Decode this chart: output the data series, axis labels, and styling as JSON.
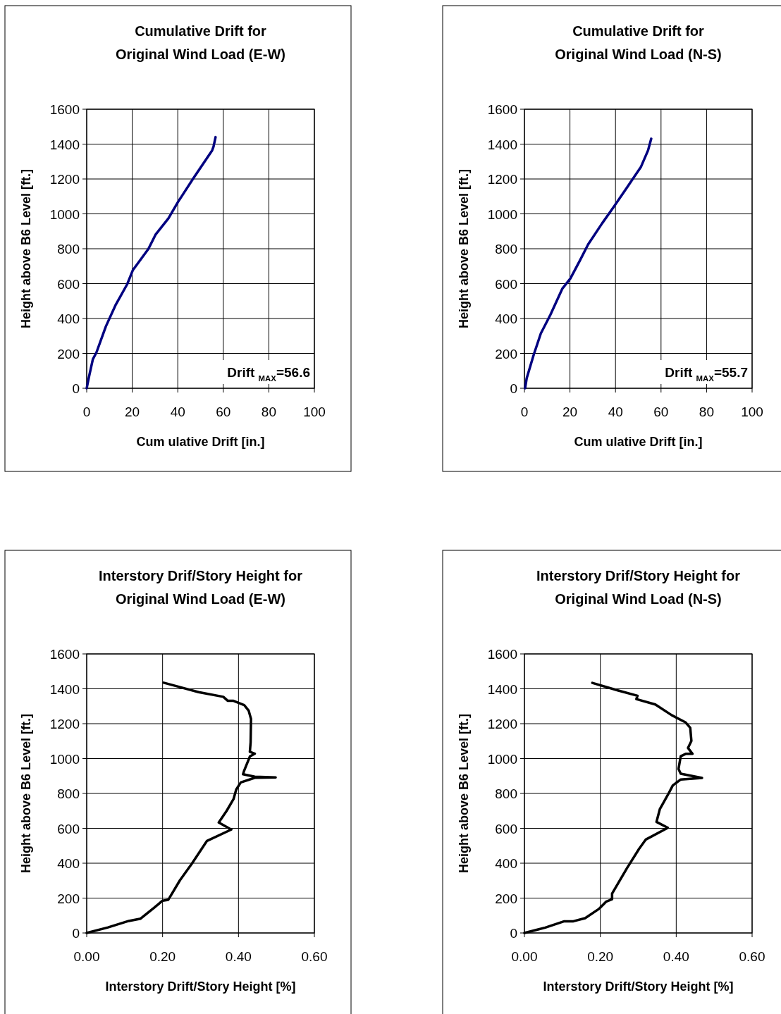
{
  "chart_data": [
    {
      "type": "line",
      "title": "Cumulative Drift for\nOriginal Wind Load (E-W)",
      "xlabel": "Cum ulative Drift [in.]",
      "ylabel": "Height above B6 Level [ft.]",
      "xlim": [
        0,
        100
      ],
      "xticks": [
        0,
        20,
        40,
        60,
        80,
        100
      ],
      "ylim": [
        0,
        1600
      ],
      "yticks": [
        0,
        200,
        400,
        600,
        800,
        1000,
        1200,
        1400,
        1600
      ],
      "grid": true,
      "annotations": [
        "Drift $_{MAX}$=56.6"
      ],
      "series": [
        {
          "color": "#000080",
          "x": [
            0,
            1.1,
            2.7,
            4.3,
            8.4,
            12.6,
            17.8,
            20.3,
            27.1,
            30.2,
            35.9,
            40.1,
            46.8,
            55.1,
            55.7,
            56.6
          ],
          "values": [
            0,
            71,
            166,
            206,
            354,
            475,
            597,
            678,
            799,
            880,
            974,
            1068,
            1203,
            1364,
            1385,
            1440
          ]
        }
      ]
    },
    {
      "type": "line",
      "title": "Cumulative Drift for\nOriginal Wind Load (N-S)",
      "xlabel": "Cum ulative Drift [in.]",
      "ylabel": "Height above B6 Level [ft.]",
      "xlim": [
        0,
        100
      ],
      "xticks": [
        0,
        20,
        40,
        60,
        80,
        100
      ],
      "ylim": [
        0,
        1600
      ],
      "yticks": [
        0,
        200,
        400,
        600,
        800,
        1000,
        1200,
        1400,
        1600
      ],
      "grid": true,
      "annotations": [
        "Drift $_{MAX}$=55.7"
      ],
      "series": [
        {
          "color": "#000080",
          "x": [
            0.3,
            1.0,
            4.1,
            7.2,
            11.4,
            16.6,
            20.2,
            24.3,
            28.0,
            34.2,
            39.3,
            45.6,
            51.2,
            54.3,
            55.7
          ],
          "values": [
            0,
            58,
            193,
            314,
            421,
            570,
            630,
            731,
            825,
            947,
            1041,
            1162,
            1270,
            1364,
            1431
          ]
        }
      ]
    },
    {
      "type": "line",
      "title": "Interstory Drif/Story Height for\nOriginal Wind Load (E-W)",
      "xlabel": "Interstory Drift/Story Height [%]",
      "ylabel": "Height above B6 Level [ft.]",
      "xlim": [
        0,
        0.6
      ],
      "xticks": [
        {
          "value": 0,
          "label": "0.00"
        },
        {
          "value": 0.2,
          "label": "0.20"
        },
        {
          "value": 0.4,
          "label": "0.40"
        },
        {
          "value": 0.6,
          "label": "0.60"
        }
      ],
      "ylim": [
        0,
        1600
      ],
      "yticks": [
        0,
        200,
        400,
        600,
        800,
        1000,
        1200,
        1400,
        1600
      ],
      "grid": true,
      "series": [
        {
          "color": "#000000",
          "x": [
            0,
            0.056,
            0.111,
            0.142,
            0.179,
            0.2,
            0.215,
            0.246,
            0.277,
            0.317,
            0.381,
            0.348,
            0.369,
            0.387,
            0.394,
            0.406,
            0.443,
            0.498,
            0.443,
            0.412,
            0.415,
            0.43,
            0.443,
            0.43,
            0.432,
            0.433,
            0.427,
            0.415,
            0.387,
            0.372,
            0.36,
            0.295,
            0.203
          ],
          "values": [
            0,
            32,
            69,
            82,
            147,
            185,
            190,
            303,
            397,
            528,
            593,
            633,
            701,
            768,
            822,
            863,
            890,
            892,
            896,
            910,
            931,
            1012,
            1028,
            1039,
            1093,
            1227,
            1274,
            1307,
            1331,
            1331,
            1354,
            1381,
            1435
          ]
        }
      ]
    },
    {
      "type": "line",
      "title": "Interstory Drif/Story Height for\nOriginal Wind Load (N-S)",
      "xlabel": "Interstory Drift/Story Height [%]",
      "ylabel": "Height above B6 Level [ft.]",
      "xlim": [
        0,
        0.6
      ],
      "xticks": [
        {
          "value": 0,
          "label": "0.00"
        },
        {
          "value": 0.2,
          "label": "0.20"
        },
        {
          "value": 0.4,
          "label": "0.40"
        },
        {
          "value": 0.6,
          "label": "0.60"
        }
      ],
      "ylim": [
        0,
        1600
      ],
      "yticks": [
        0,
        200,
        400,
        600,
        800,
        1000,
        1200,
        1400,
        1600
      ],
      "grid": true,
      "series": [
        {
          "color": "#000000",
          "x": [
            0,
            0.055,
            0.105,
            0.129,
            0.16,
            0.197,
            0.215,
            0.231,
            0.231,
            0.271,
            0.302,
            0.32,
            0.378,
            0.348,
            0.357,
            0.378,
            0.391,
            0.412,
            0.468,
            0.412,
            0.406,
            0.412,
            0.425,
            0.443,
            0.431,
            0.44,
            0.437,
            0.425,
            0.388,
            0.345,
            0.295,
            0.298,
            0.246,
            0.179
          ],
          "values": [
            0,
            31,
            67,
            67,
            85,
            139,
            179,
            193,
            226,
            374,
            482,
            536,
            603,
            637,
            711,
            792,
            846,
            880,
            889,
            913,
            940,
            1014,
            1027,
            1027,
            1061,
            1101,
            1176,
            1207,
            1249,
            1310,
            1341,
            1360,
            1391,
            1434
          ]
        }
      ]
    }
  ]
}
